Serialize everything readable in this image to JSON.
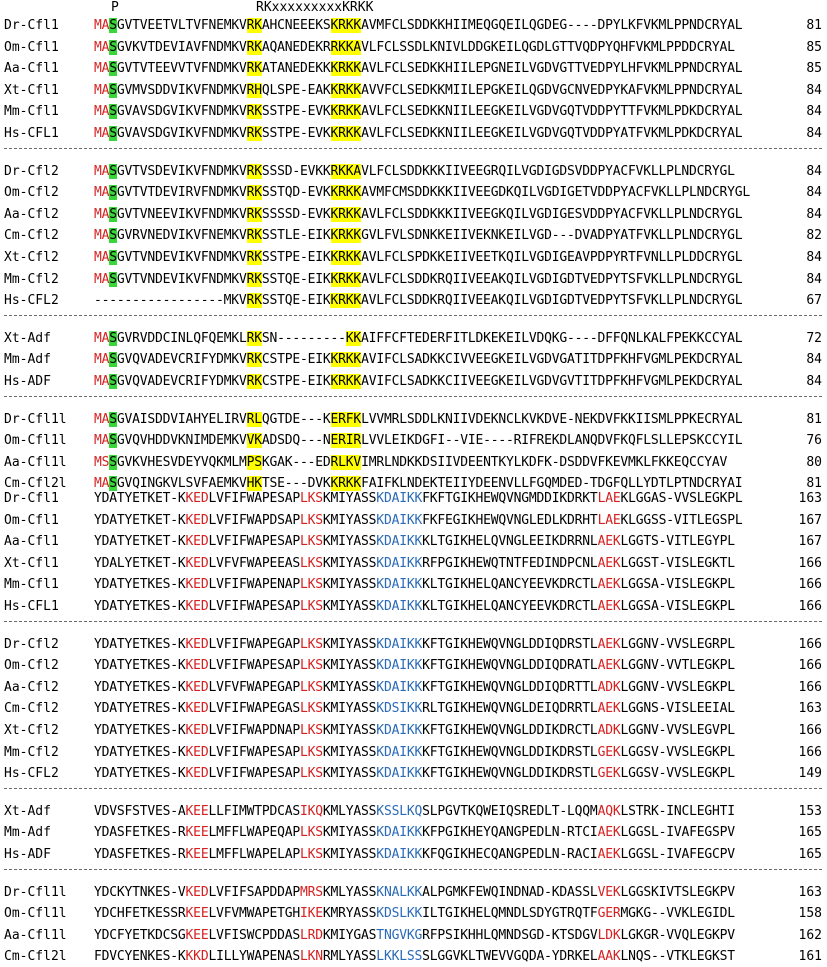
{
  "colors": {
    "red": "#d62020",
    "blue": "#2a6ab8",
    "green_highlight": "#39d639",
    "yellow_highlight": "#ffff00"
  },
  "top_labels": {
    "p": "P",
    "motif": "RKxxxxxxxxxKRKK"
  },
  "blocks": [
    {
      "groups": [
        [
          {
            "name": "Dr-Cfl1",
            "seq": "MASGVTVEETVLTVFNEMKVRKAHCNEEEKSKRKKAVMFCLSDDKKHIIMEQGQEILQGDEG----DPYLKFVKMLPPNDCRYAL",
            "pos": "81"
          },
          {
            "name": "Om-Cfl1",
            "seq": "MASGVKVTDEVIAVFNDMKVRKAQANEDEKRRKKAVLFCLSSDLKNIVLDDGKEILQGDLGTTVQDPYQHFVKMLPPDDCRYAL",
            "pos": "85"
          },
          {
            "name": "Aa-Cfl1",
            "seq": "MASGVTVTEEVVTVFNDMKVRKATANEDEKKKRKKAVLFCLSEDKKHIILEPGNEILVGDVGTTVEDPYLHFVKMLPPNDCRYAL",
            "pos": "85"
          },
          {
            "name": "Xt-Cfl1",
            "seq": "MASGVMVSDDVIKVFNDMKVRHQLSPE-EAKKRKKAVVFCLSEDKKMIILEPGKEILQGDVGCNVEDPYKAFVKMLPPNDCRYAL",
            "pos": "84"
          },
          {
            "name": "Mm-Cfl1",
            "seq": "MASGVAVSDGVIKVFNDMKVRKSSTPE-EVKKRKKAVLFCLSEDKKNIILEEGKEILVGDVGQTVDDPYTTFVKMLPDKDCRYAL",
            "pos": "84"
          },
          {
            "name": "Hs-CFL1",
            "seq": "MASGVAVSDGVIKVFNDMKVRKSSTPE-EVKKRKKAVLFCLSEDKKNIILEEGKEILVGDVGQTVDDPYATFVKMLPDKDCRYAL",
            "pos": "84"
          }
        ],
        [
          {
            "name": "Dr-Cfl2",
            "seq": "MASGVTVSDEVIKVFNDMKVRKSSSD-EVKKRKKAVLFCLSDDKKKIIVEEGRQILVGDIGDSVDDPYACFVKLLPLNDCRYGL",
            "pos": "84"
          },
          {
            "name": "Om-Cfl2",
            "seq": "MASGVTVTDEVIRVFNDMKVRKSSTQD-EVKKRKKAVMFCMSDDKKKIIVEEGDKQILVGDIGETVDDPYACFVKLLPLNDCRYGL",
            "pos": "84"
          },
          {
            "name": "Aa-Cfl2",
            "seq": "MASGVTVNEEVIKVFNDMKVRKSSSSD-EVKKRKKAVLFCLSDDKKKIIVEEGKQILVGDIGESVDDPYACFVKLLPLNDCRYGL",
            "pos": "84"
          },
          {
            "name": "Cm-Cfl2",
            "seq": "MASGVRVNEDVIKVFNEMKVRKSSTLE-EIKKRKKGVLFVLSDNKKEIIVEKNKEILVGD---DVADPYATFVKLLPLNDCRYGL",
            "pos": "82"
          },
          {
            "name": "Xt-Cfl2",
            "seq": "MASGVTVNDEVIKVFNDMKVRKSSTPE-EIKKRKKAVLFCLSPDKKEIIVEETKQILVGDIGEAVPDPYRTFVNLLPLDDCRYGL",
            "pos": "84"
          },
          {
            "name": "Mm-Cfl2",
            "seq": "MASGVTVNDEVIKVFNDMKVRKSSTQE-EIKKRKKAVLFCLSDDKRQIIVEEAKQILVGDIGDTVEDPYTSFVKLLPLNDCRYGL",
            "pos": "84"
          },
          {
            "name": "Hs-CFL2",
            "seq": "-----------------MKVRKSSTQE-EIKKRKKAVLFCLSDDKRQIIVEEAKQILVGDIGDTVEDPYTSFVKLLPLNDCRYGL",
            "pos": "67"
          }
        ],
        [
          {
            "name": "Xt-Adf",
            "seq": "MASGVRVDDCINLQFQEMKLRKSN---------KKAIFFCFTEDERFITLDKEKEILVDQKG----DFFQNLKALFPEKKCCYAL",
            "pos": "72"
          },
          {
            "name": "Mm-Adf",
            "seq": "MASGVQVADEVCRIFYDMKVRKCSTPE-EIKKRKKAVIFCLSADKKCIVVEEGKEILVGDVGATITDPFKHFVGMLPEKDCRYAL",
            "pos": "84"
          },
          {
            "name": "Hs-ADF",
            "seq": "MASGVQVADEVCRIFYDMKVRKCSTPE-EIKKRKKAVIFCLSADKKCIIVEEGKEILVGDVGVTITDPFKHFVGMLPEKDCRYAL",
            "pos": "84"
          }
        ],
        [
          {
            "name": "Dr-Cfl1l",
            "seq": "MASGVAISDDVIAHYELIRVRLQGTDE---KERFKLVVMRLSDDLKNIIVDEKNCLKVKDVE-NEKDVFKKIISMLPPKECRYAL",
            "pos": "81"
          },
          {
            "name": "Om-Cfl1l",
            "seq": "MASGVQVHDDVKNIMDEMKVVKADSDQ---NERIRLVVLEIKDGFI--VIE----RIFREKDLANQDVFKQFLSLLEPSKCCYIL",
            "pos": "76"
          },
          {
            "name": "Aa-Cfl1l",
            "seq": "MSSGVKVHESVDEYVQKMLMPSKGAK---EDRLKVIMRLNDKKDSIIVDEENTKYLKDFK-DSDDVFKEVMKLFKKEQCCYAV",
            "pos": "80"
          },
          {
            "name": "Cm-Cfl2l",
            "seq": "MASGVQINGKVLSVFAEMKVHKTSE---DVKKRKKFAIFKLNDEKTEIIYDEENVLLFGQMDED-TDGFQLLYDTLPTNDCRYAI",
            "pos": "81"
          }
        ]
      ]
    },
    {
      "groups": [
        [
          {
            "name": "Dr-Cfl1",
            "seq": "YDATYETKET-KKEDLVFIFWAPESAPLKSKMIYASSKDAIKKFKFTGIKHEWQVNGMDDIKDRKTLAEKLGGAS-VVSLEGKPL",
            "pos": "163"
          },
          {
            "name": "Om-Cfl1",
            "seq": "YDATYETKET-KKEDLVFIFWAPDSAPLKSKMIYASSKDAIKKFKFEGIKHEWQVNGLEDLKDRHTLAEKLGGSS-VITLEGSPL",
            "pos": "167"
          },
          {
            "name": "Aa-Cfl1",
            "seq": "YDATYETKET-KKEDLVFIFWAPESAPLKSKMIYASSKDAIKKKLTGIKHELQVNGLEEIKDRRNLAEKLGGTS-VITLEGYPL",
            "pos": "167"
          },
          {
            "name": "Xt-Cfl1",
            "seq": "YDALYETKET-KKEDLVFVFWAPEEASLKSKMIYASSKDAIKKRFPGIKHEWQTNTFEDINDPCNLAEKLGGST-VISLEGKTL",
            "pos": "166"
          },
          {
            "name": "Mm-Cfl1",
            "seq": "YDATYETKES-KKEDLVFIFWAPENAPLKSKMIYASSKDAIKKKLTGIKHELQANCYEEVKDRCTLAEKLGGSA-VISLEGKPL",
            "pos": "166"
          },
          {
            "name": "Hs-CFL1",
            "seq": "YDATYETKES-KKEDLVFIFWAPESAPLKSKMIYASSKDAIKKKLTGIKHELQANCYEEVKDRCTLAEKLGGSA-VISLEGKPL",
            "pos": "166"
          }
        ],
        [
          {
            "name": "Dr-Cfl2",
            "seq": "YDATYETKES-KKEDLVFIFWAPEGAPLKSKMIYASSKDAIKKKFTGIKHEWQVNGLDDIQDRSTLAEKLGGNV-VVSLEGRPL",
            "pos": "166"
          },
          {
            "name": "Om-Cfl2",
            "seq": "YDATYETKES-KKEDLVFIFWAPESAPLKSKMIYASSKDAIKKKFTGIKHEWQVNGLDDIQDRATLAEKLGGNV-VVTLEGKPL",
            "pos": "166"
          },
          {
            "name": "Aa-Cfl2",
            "seq": "YDATYETKES-KKEDLVFVFWAPEGAPLKSKMIYASSKDAIKKKFTGIKHEWQVNGLDDIQDRTTLADKLGGNV-VVSLEGKPL",
            "pos": "166"
          },
          {
            "name": "Cm-Cfl2",
            "seq": "YDATYETRES-KKEDLVFIFWAPEGASLKSKMIYASSKDSIKKRLTGIKHEWQVNGLDEIQDRRTLAEKLGGNS-VISLEEIAL",
            "pos": "163"
          },
          {
            "name": "Xt-Cfl2",
            "seq": "YDATYETKES-KKEDLVFIFWAPDNAPLKSKMIYASSKDAIKKKFTGIKHEWQVNGLDDIKDRCTLADKLGGNV-VVSLEGVPL",
            "pos": "166"
          },
          {
            "name": "Mm-Cfl2",
            "seq": "YDATYETKES-KKEDLVFIFWAPESAPLKSKMIYASSKDAIKKKFTGIKHEWQVNGLDDIKDRSTLGEKLGGSV-VVSLEGKPL",
            "pos": "166"
          },
          {
            "name": "Hs-CFL2",
            "seq": "YDATYETKES-KKEDLVFIFWAPESAPLKSKMIYASSKDAIKKKFTGIKHEWQVNGLDDIKDRSTLGEKLGGSV-VVSLEGKPL",
            "pos": "149"
          }
        ],
        [
          {
            "name": "Xt-Adf",
            "seq": "VDVSFSTVES-AKEELLFIMWTPDCASIKQKMLYASSKSSLKQSLPGVTKQWEIQSREDLT-LQQMAQKLSTRK-INCLEGHTI",
            "pos": "153"
          },
          {
            "name": "Mm-Adf",
            "seq": "YDASFETKES-RKEELMFFLWAPEQAPLKSKMIYASSKDAIKKKFPGIKHEYQANGPEDLN-RTCIAEKLGGSL-IVAFEGSPV",
            "pos": "165"
          },
          {
            "name": "Hs-ADF",
            "seq": "YDASFETKES-RKEELMFFLWAPELAPLKSKMIYASSKDAIKKKFQGIKHECQANGPEDLN-RACIAEKLGGSL-IVAFEGCPV",
            "pos": "165"
          }
        ],
        [
          {
            "name": "Dr-Cfl1l",
            "seq": "YDCKYTNKES-VKEDLVFIFSAPDDAPMRSKMLYASSKNALKKALPGMKFEWQINDNAD-KDASSLVEKLGGSKIVTSLEGKPV",
            "pos": "163"
          },
          {
            "name": "Om-Cfl1l",
            "seq": "YDCHFETKESSRKEELVFVMWAPETGHIKEKMRYASSKDSLKKILTGIKHELQMNDLSDYGTRQTFGERMGKG--VVKLEGIDL",
            "pos": "158"
          },
          {
            "name": "Aa-Cfl1l",
            "seq": "YDCFYETKDCSGKEELVFISWCPDDASLRDKMIYGASTNGVKGRFPSIKHHLQMNDSGD-KTSDGVLDKLGKGR-VVQLEGKPV",
            "pos": "162"
          },
          {
            "name": "Cm-Cfl2l",
            "seq": "FDVCYENKES-KKKDLILLYWAPENASLKNRMLYASSLKKLSSSLGGVKLTWEVVGQDA-YDRKELAAKLNQS--VTKLEGKST",
            "pos": "161"
          }
        ]
      ]
    }
  ]
}
